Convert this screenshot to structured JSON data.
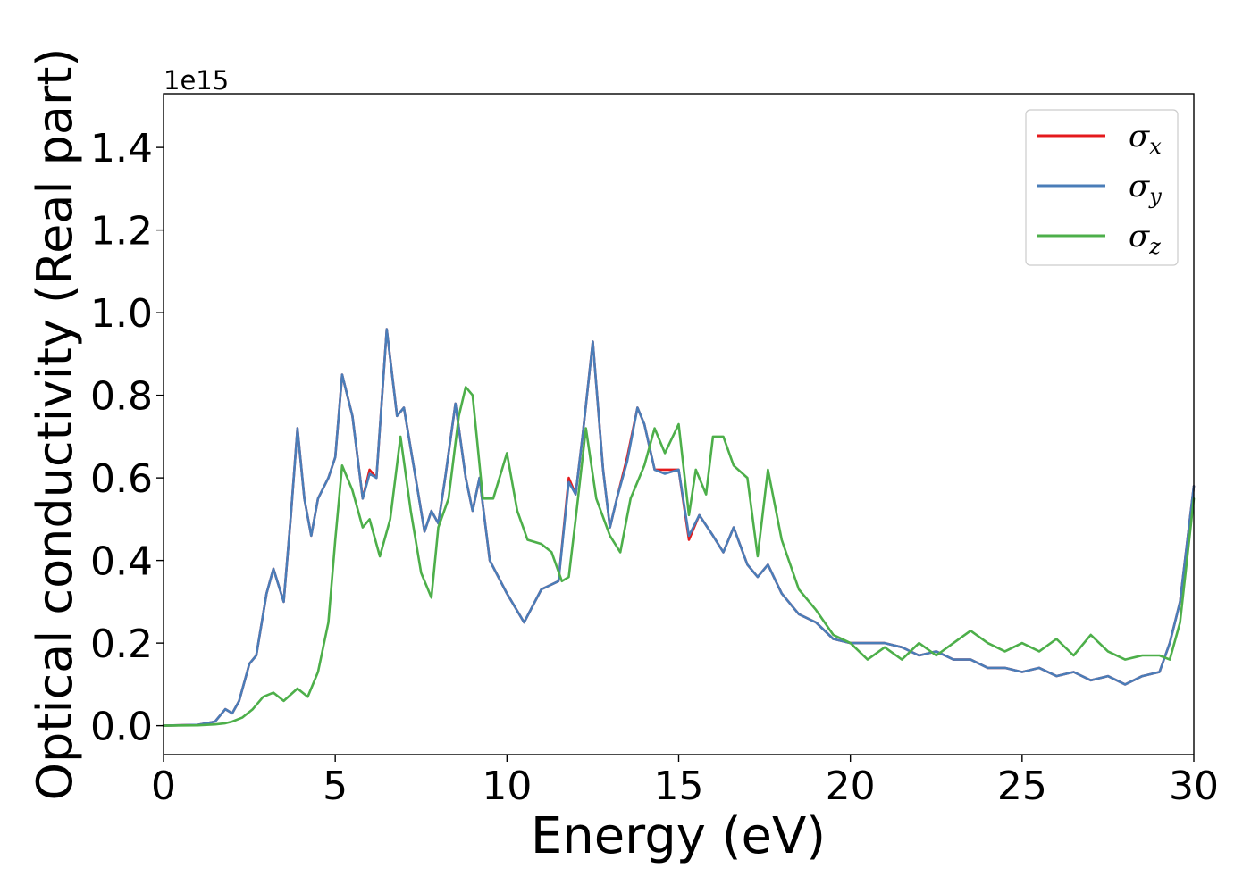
{
  "chart_data": {
    "type": "line",
    "xlabel": "Energy (eV)",
    "ylabel": "Optical conductivity (Real part)",
    "y_offset_text": "1e15",
    "xlim": [
      0,
      30
    ],
    "ylim": [
      -0.07,
      1.53
    ],
    "x_ticks": [
      0,
      5,
      10,
      15,
      20,
      25,
      30
    ],
    "x_tick_labels": [
      "0",
      "5",
      "10",
      "15",
      "20",
      "25",
      "30"
    ],
    "y_ticks": [
      0.0,
      0.2,
      0.4,
      0.6,
      0.8,
      1.0,
      1.2,
      1.4
    ],
    "y_tick_labels": [
      "0.0",
      "0.2",
      "0.4",
      "0.6",
      "0.8",
      "1.0",
      "1.2",
      "1.4"
    ],
    "grid": false,
    "legend_position": "top-right",
    "series": [
      {
        "name": "σx",
        "legend_base": "σ",
        "legend_sub": "x",
        "color": "#e41a1c",
        "x": [
          0,
          1,
          1.5,
          1.8,
          2.0,
          2.2,
          2.5,
          2.7,
          3.0,
          3.2,
          3.5,
          3.7,
          3.9,
          4.1,
          4.3,
          4.5,
          4.8,
          5.0,
          5.2,
          5.5,
          5.8,
          6.0,
          6.2,
          6.5,
          6.8,
          7.0,
          7.3,
          7.6,
          7.8,
          8.0,
          8.2,
          8.5,
          8.8,
          9.0,
          9.2,
          9.5,
          10.0,
          10.5,
          11.0,
          11.5,
          11.8,
          12.0,
          12.2,
          12.5,
          12.8,
          13.0,
          13.2,
          13.5,
          13.8,
          14.0,
          14.3,
          14.6,
          15.0,
          15.3,
          15.6,
          16.0,
          16.3,
          16.6,
          17.0,
          17.3,
          17.6,
          18.0,
          18.5,
          19.0,
          19.5,
          20.0,
          20.5,
          21.0,
          21.5,
          22.0,
          22.5,
          23.0,
          23.5,
          24.0,
          24.5,
          25.0,
          25.5,
          26.0,
          26.5,
          27.0,
          27.5,
          28.0,
          28.5,
          29.0,
          29.3,
          29.6,
          30.0
        ],
        "y": [
          0,
          0.002,
          0.01,
          0.04,
          0.03,
          0.06,
          0.15,
          0.17,
          0.32,
          0.38,
          0.3,
          0.5,
          0.72,
          0.55,
          0.46,
          0.55,
          0.6,
          0.65,
          0.85,
          0.75,
          0.55,
          0.62,
          0.6,
          0.96,
          0.75,
          0.77,
          0.62,
          0.47,
          0.52,
          0.49,
          0.6,
          0.78,
          0.6,
          0.52,
          0.6,
          0.4,
          0.32,
          0.25,
          0.33,
          0.35,
          0.6,
          0.56,
          0.7,
          0.93,
          0.62,
          0.48,
          0.55,
          0.65,
          0.77,
          0.73,
          0.62,
          0.62,
          0.62,
          0.45,
          0.51,
          0.46,
          0.42,
          0.48,
          0.39,
          0.36,
          0.39,
          0.32,
          0.27,
          0.25,
          0.21,
          0.2,
          0.2,
          0.2,
          0.19,
          0.17,
          0.18,
          0.16,
          0.16,
          0.14,
          0.14,
          0.13,
          0.14,
          0.12,
          0.13,
          0.11,
          0.12,
          0.1,
          0.12,
          0.13,
          0.2,
          0.3,
          0.58
        ]
      },
      {
        "name": "σy",
        "legend_base": "σ",
        "legend_sub": "y",
        "color": "#4a7db8",
        "x": [
          0,
          1,
          1.5,
          1.8,
          2.0,
          2.2,
          2.5,
          2.7,
          3.0,
          3.2,
          3.5,
          3.7,
          3.9,
          4.1,
          4.3,
          4.5,
          4.8,
          5.0,
          5.2,
          5.5,
          5.8,
          6.0,
          6.2,
          6.5,
          6.8,
          7.0,
          7.3,
          7.6,
          7.8,
          8.0,
          8.2,
          8.5,
          8.8,
          9.0,
          9.2,
          9.5,
          10.0,
          10.5,
          11.0,
          11.5,
          11.8,
          12.0,
          12.2,
          12.5,
          12.8,
          13.0,
          13.2,
          13.5,
          13.8,
          14.0,
          14.3,
          14.6,
          15.0,
          15.3,
          15.6,
          16.0,
          16.3,
          16.6,
          17.0,
          17.3,
          17.6,
          18.0,
          18.5,
          19.0,
          19.5,
          20.0,
          20.5,
          21.0,
          21.5,
          22.0,
          22.5,
          23.0,
          23.5,
          24.0,
          24.5,
          25.0,
          25.5,
          26.0,
          26.5,
          27.0,
          27.5,
          28.0,
          28.5,
          29.0,
          29.3,
          29.6,
          30.0
        ],
        "y": [
          0,
          0.002,
          0.01,
          0.04,
          0.03,
          0.06,
          0.15,
          0.17,
          0.32,
          0.38,
          0.3,
          0.5,
          0.72,
          0.55,
          0.46,
          0.55,
          0.6,
          0.65,
          0.85,
          0.75,
          0.55,
          0.61,
          0.6,
          0.96,
          0.75,
          0.77,
          0.62,
          0.47,
          0.52,
          0.49,
          0.6,
          0.78,
          0.6,
          0.52,
          0.6,
          0.4,
          0.32,
          0.25,
          0.33,
          0.35,
          0.59,
          0.56,
          0.7,
          0.93,
          0.62,
          0.48,
          0.55,
          0.64,
          0.77,
          0.73,
          0.62,
          0.61,
          0.62,
          0.46,
          0.51,
          0.46,
          0.42,
          0.48,
          0.39,
          0.36,
          0.39,
          0.32,
          0.27,
          0.25,
          0.21,
          0.2,
          0.2,
          0.2,
          0.19,
          0.17,
          0.18,
          0.16,
          0.16,
          0.14,
          0.14,
          0.13,
          0.14,
          0.12,
          0.13,
          0.11,
          0.12,
          0.1,
          0.12,
          0.13,
          0.2,
          0.3,
          0.58
        ]
      },
      {
        "name": "σz",
        "legend_base": "σ",
        "legend_sub": "z",
        "color": "#4daf4a",
        "x": [
          0,
          1,
          1.5,
          1.8,
          2.0,
          2.3,
          2.6,
          2.9,
          3.2,
          3.5,
          3.9,
          4.2,
          4.5,
          4.8,
          5.0,
          5.2,
          5.5,
          5.8,
          6.0,
          6.3,
          6.6,
          6.9,
          7.2,
          7.5,
          7.8,
          8.0,
          8.3,
          8.6,
          8.8,
          9.0,
          9.3,
          9.6,
          10.0,
          10.3,
          10.6,
          11.0,
          11.3,
          11.6,
          11.8,
          12.0,
          12.3,
          12.6,
          13.0,
          13.3,
          13.6,
          14.0,
          14.3,
          14.6,
          15.0,
          15.3,
          15.5,
          15.8,
          16.0,
          16.3,
          16.6,
          17.0,
          17.3,
          17.6,
          18.0,
          18.5,
          19.0,
          19.5,
          20.0,
          20.5,
          21.0,
          21.5,
          22.0,
          22.5,
          23.0,
          23.5,
          24.0,
          24.5,
          25.0,
          25.5,
          26.0,
          26.5,
          27.0,
          27.5,
          28.0,
          28.5,
          29.0,
          29.3,
          29.6,
          30.0
        ],
        "y": [
          0,
          0.001,
          0.003,
          0.006,
          0.01,
          0.02,
          0.04,
          0.07,
          0.08,
          0.06,
          0.09,
          0.07,
          0.13,
          0.25,
          0.45,
          0.63,
          0.57,
          0.48,
          0.5,
          0.41,
          0.5,
          0.7,
          0.52,
          0.37,
          0.31,
          0.48,
          0.55,
          0.75,
          0.82,
          0.8,
          0.55,
          0.55,
          0.66,
          0.52,
          0.45,
          0.44,
          0.42,
          0.35,
          0.36,
          0.5,
          0.72,
          0.55,
          0.46,
          0.42,
          0.55,
          0.63,
          0.72,
          0.66,
          0.73,
          0.51,
          0.62,
          0.56,
          0.7,
          0.7,
          0.63,
          0.6,
          0.41,
          0.62,
          0.45,
          0.33,
          0.28,
          0.22,
          0.2,
          0.16,
          0.19,
          0.16,
          0.2,
          0.17,
          0.2,
          0.23,
          0.2,
          0.18,
          0.2,
          0.18,
          0.21,
          0.17,
          0.22,
          0.18,
          0.16,
          0.17,
          0.17,
          0.16,
          0.25,
          0.55
        ]
      }
    ]
  }
}
